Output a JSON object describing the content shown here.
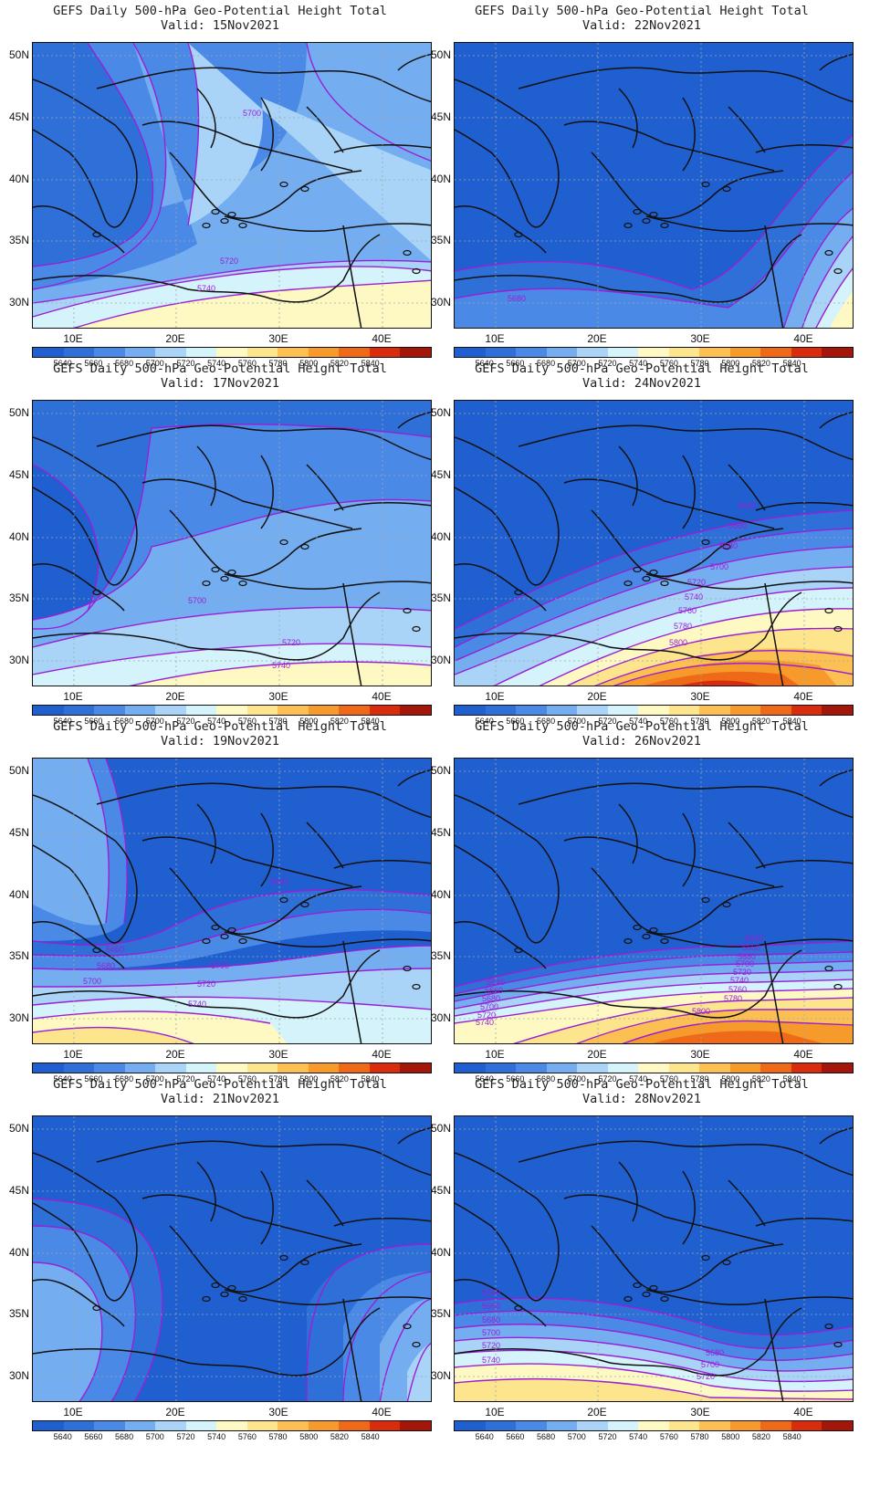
{
  "title": "GEFS Daily 500-hPa Geo-Potential Height Total",
  "valid_prefix": "Valid:",
  "lat_labels": [
    "50N",
    "45N",
    "40N",
    "35N",
    "30N"
  ],
  "lon_labels": [
    "10E",
    "20E",
    "30E",
    "40E"
  ],
  "colorbar": {
    "labels": [
      "5640",
      "5660",
      "5680",
      "5700",
      "5720",
      "5740",
      "5760",
      "5780",
      "5800",
      "5820",
      "5840"
    ],
    "colors": [
      "#1f5fcf",
      "#2f6fd8",
      "#4a8ae6",
      "#74aef0",
      "#a9d4f7",
      "#d4f3fb",
      "#fef9c3",
      "#fde58e",
      "#fcc052",
      "#f59a2b",
      "#ee6a19",
      "#d82c0d",
      "#a4150a"
    ]
  },
  "contour_color": "#9a1fd6",
  "panels": [
    {
      "valid": "Valid: 15Nov2021",
      "contour_labels": [
        "5700",
        "5720",
        "5740"
      ]
    },
    {
      "valid": "Valid: 22Nov2021",
      "contour_labels": [
        "5680"
      ]
    },
    {
      "valid": "Valid: 17Nov2021",
      "contour_labels": [
        "5700",
        "5720",
        "5740"
      ]
    },
    {
      "valid": "Valid: 24Nov2021",
      "contour_labels": [
        "5640",
        "5660",
        "5680",
        "5700",
        "5720",
        "5740",
        "5760",
        "5780",
        "5800"
      ]
    },
    {
      "valid": "Valid: 19Nov2021",
      "contour_labels": [
        "5640",
        "5660",
        "5680",
        "5700",
        "5700",
        "5720",
        "5740"
      ]
    },
    {
      "valid": "Valid: 26Nov2021",
      "contour_labels": [
        "5640",
        "5660",
        "5680",
        "5700",
        "5720",
        "5740",
        "5760",
        "5780",
        "5800",
        "5640",
        "5660",
        "5680",
        "5700",
        "5720",
        "5740"
      ]
    },
    {
      "valid": "Valid: 21Nov2021",
      "contour_labels": []
    },
    {
      "valid": "Valid: 28Nov2021",
      "contour_labels": [
        "5640",
        "5660",
        "5680",
        "5700",
        "5720",
        "5740",
        "5680",
        "5700",
        "5720"
      ]
    }
  ]
}
